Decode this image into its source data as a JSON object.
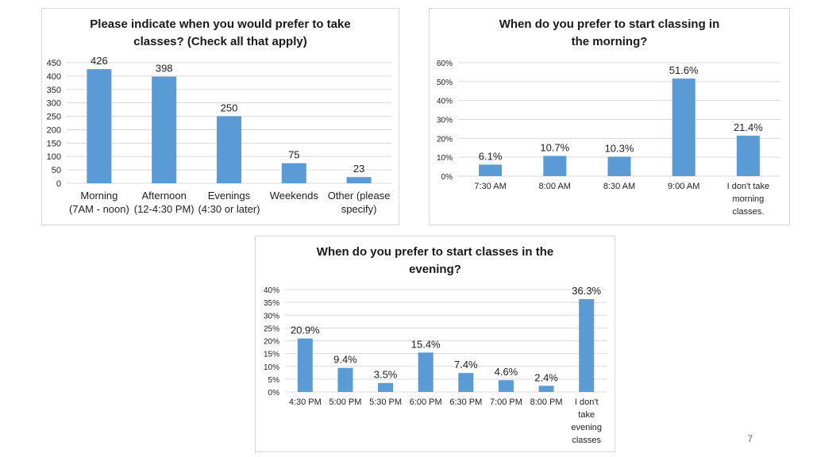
{
  "page_number": "7",
  "chart_data": [
    {
      "type": "bar",
      "title": "Please indicate when you would prefer to take\nclasses? (Check all that apply)",
      "categories": [
        [
          "Morning",
          "(7AM - noon)"
        ],
        [
          "Afternoon",
          "(12-4:30 PM)"
        ],
        [
          "Evenings",
          "(4:30 or later)"
        ],
        [
          "Weekends"
        ],
        [
          "Other (please",
          "specify)"
        ]
      ],
      "values": [
        426,
        398,
        250,
        75,
        23
      ],
      "data_labels": [
        "426",
        "398",
        "250",
        "75",
        "23"
      ],
      "ylim": [
        0,
        450
      ],
      "yticks": [
        "0",
        "50",
        "100",
        "150",
        "200",
        "250",
        "300",
        "350",
        "400",
        "450"
      ],
      "grid": true,
      "bar_color": "#5b9bd5"
    },
    {
      "type": "bar",
      "title": "When do you prefer to start classing in\nthe morning?",
      "categories": [
        [
          "7:30 AM"
        ],
        [
          "8:00 AM"
        ],
        [
          "8:30 AM"
        ],
        [
          "9:00 AM"
        ],
        [
          "I don't take",
          "morning",
          "classes."
        ]
      ],
      "values": [
        6.1,
        10.7,
        10.3,
        51.6,
        21.4
      ],
      "data_labels": [
        "6.1%",
        "10.7%",
        "10.3%",
        "51.6%",
        "21.4%"
      ],
      "ylim": [
        0,
        60
      ],
      "yticks": [
        "0%",
        "10%",
        "20%",
        "30%",
        "40%",
        "50%",
        "60%"
      ],
      "grid": true,
      "bar_color": "#5b9bd5"
    },
    {
      "type": "bar",
      "title": "When do you prefer to start classes in the\nevening?",
      "categories": [
        [
          "4:30 PM"
        ],
        [
          "5:00 PM"
        ],
        [
          "5:30 PM"
        ],
        [
          "6:00 PM"
        ],
        [
          "6:30 PM"
        ],
        [
          "7:00 PM"
        ],
        [
          "8:00 PM"
        ],
        [
          "I don't",
          "take",
          "evening",
          "classes"
        ]
      ],
      "values": [
        20.9,
        9.4,
        3.5,
        15.4,
        7.4,
        4.6,
        2.4,
        36.3
      ],
      "data_labels": [
        "20.9%",
        "9.4%",
        "3.5%",
        "15.4%",
        "7.4%",
        "4.6%",
        "2.4%",
        "36.3%"
      ],
      "ylim": [
        0,
        40
      ],
      "yticks": [
        "0%",
        "5%",
        "10%",
        "15%",
        "20%",
        "25%",
        "30%",
        "35%",
        "40%"
      ],
      "grid": true,
      "bar_color": "#5b9bd5"
    }
  ]
}
